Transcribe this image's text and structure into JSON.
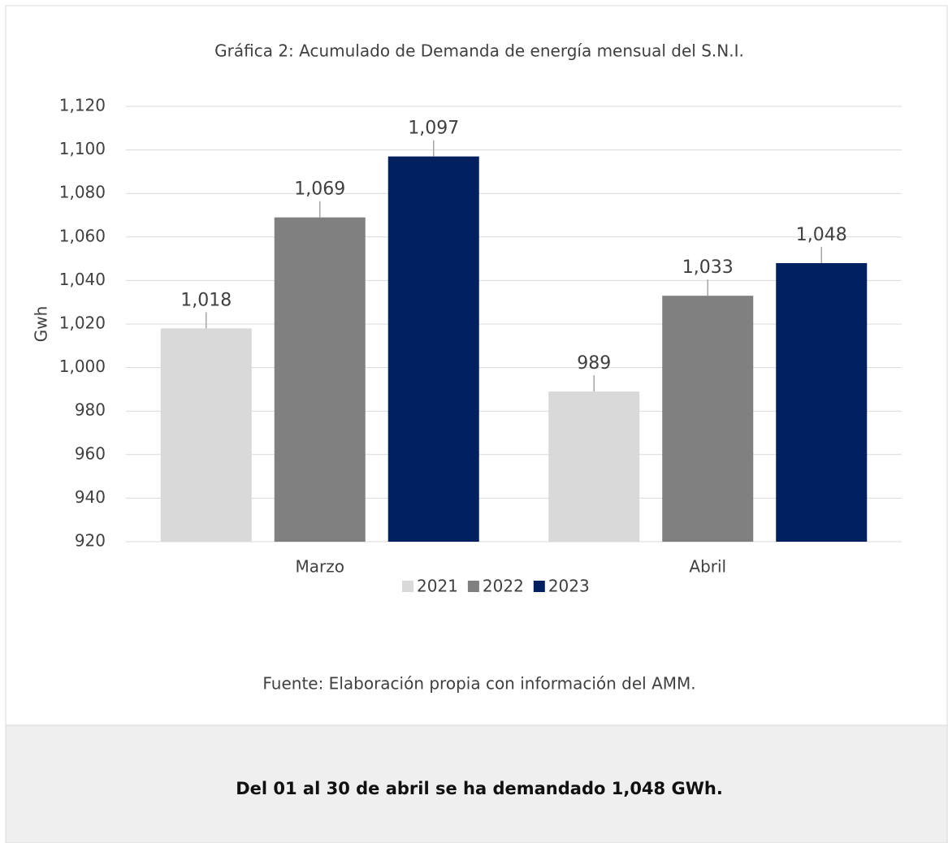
{
  "chart_data": {
    "type": "bar",
    "title": "Gráfica 2:  Acumulado de Demanda de energía mensual del S.N.I.",
    "y_label": "Gwh",
    "categories": [
      "Marzo",
      "Abril"
    ],
    "series": [
      {
        "name": "2021",
        "color": "#d9d9d9",
        "values": [
          1018,
          989
        ],
        "value_labels": [
          "1,018",
          "989"
        ]
      },
      {
        "name": "2022",
        "color": "#808080",
        "values": [
          1069,
          1033
        ],
        "value_labels": [
          "1,069",
          "1,033"
        ]
      },
      {
        "name": "2023",
        "color": "#002060",
        "values": [
          1097,
          1048
        ],
        "value_labels": [
          "1,097",
          "1,048"
        ]
      }
    ],
    "ylim": [
      920,
      1120
    ],
    "yticks": [
      920,
      940,
      960,
      980,
      {
        "value": 1000,
        "label": "1,000"
      },
      {
        "value": 1020,
        "label": "1,020"
      },
      {
        "value": 1040,
        "label": "1,040"
      },
      {
        "value": 1060,
        "label": "1,060"
      },
      {
        "value": 1080,
        "label": "1,080"
      },
      {
        "value": 1100,
        "label": "1,100"
      },
      {
        "value": 1120,
        "label": "1,120"
      }
    ],
    "grid": true,
    "legend": "bottom",
    "source": "Fuente: Elaboración propia con información del AMM."
  },
  "footer": {
    "text": "Del 01 al 30 de abril se ha demandado 1,048 GWh."
  }
}
